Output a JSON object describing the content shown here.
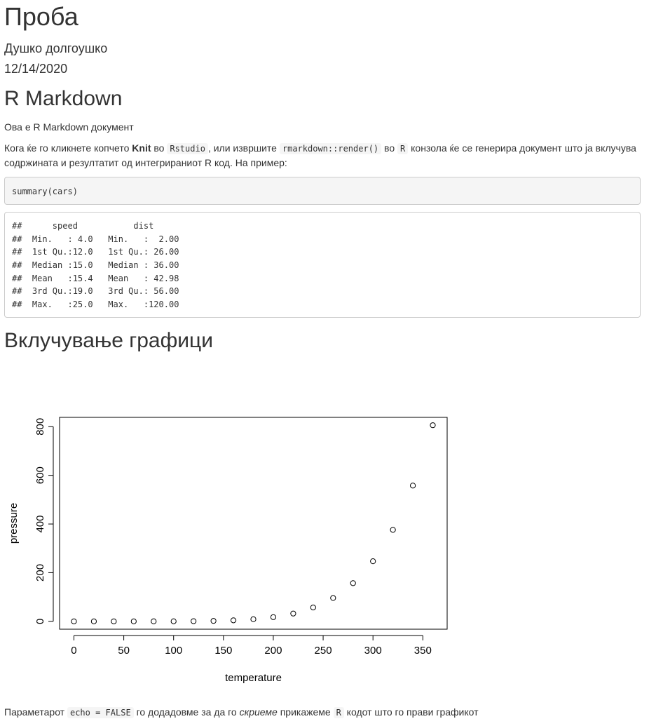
{
  "doc": {
    "title": "Проба",
    "author": "Душко долгоушко",
    "date": "12/14/2020"
  },
  "section1": {
    "heading": "R Markdown",
    "para1": "Ова е R Markdown документ",
    "para2": {
      "t1": "Кога ќе го кликнете копчето ",
      "bold": "Knit",
      "t2": " во ",
      "code1": "Rstudio",
      "t3": ", или извршите ",
      "code2": "rmarkdown::render()",
      "t4": " во ",
      "code3": "R",
      "t5": " конзола ќе се генерира документ што ја вклучува содржината и резултатит од интегрираниот R код. На пример:"
    },
    "code_input": "summary(cars)",
    "code_output": [
      "##      speed           dist       ",
      "##  Min.   : 4.0   Min.   :  2.00  ",
      "##  1st Qu.:12.0   1st Qu.: 26.00  ",
      "##  Median :15.0   Median : 36.00  ",
      "##  Mean   :15.4   Mean   : 42.98  ",
      "##  3rd Qu.:19.0   3rd Qu.: 56.00  ",
      "##  Max.   :25.0   Max.   :120.00  "
    ]
  },
  "section2": {
    "heading": "Вклучување графици",
    "footer": {
      "t1": "Параметарот ",
      "code1": "echo = FALSE",
      "t2": " го додадовме за да го ",
      "em": "скриеме",
      "t3": " прикажеме ",
      "code2": "R",
      "t4": " кодот што го прави графикот"
    }
  },
  "chart_data": {
    "type": "scatter",
    "xlabel": "temperature",
    "ylabel": "pressure",
    "xlim": [
      0,
      360
    ],
    "ylim": [
      0,
      806
    ],
    "xticks": [
      0,
      50,
      100,
      150,
      200,
      250,
      300,
      350
    ],
    "yticks": [
      0,
      200,
      400,
      600,
      800
    ],
    "x": [
      0,
      20,
      40,
      60,
      80,
      100,
      120,
      140,
      160,
      180,
      200,
      220,
      240,
      260,
      280,
      300,
      320,
      340,
      360
    ],
    "y": [
      0.0002,
      0.0012,
      0.006,
      0.03,
      0.09,
      0.27,
      0.75,
      1.85,
      4.2,
      8.8,
      17.3,
      32.1,
      57,
      96,
      157,
      247,
      376,
      558,
      806
    ],
    "grid": false,
    "marker": "open-circle"
  }
}
